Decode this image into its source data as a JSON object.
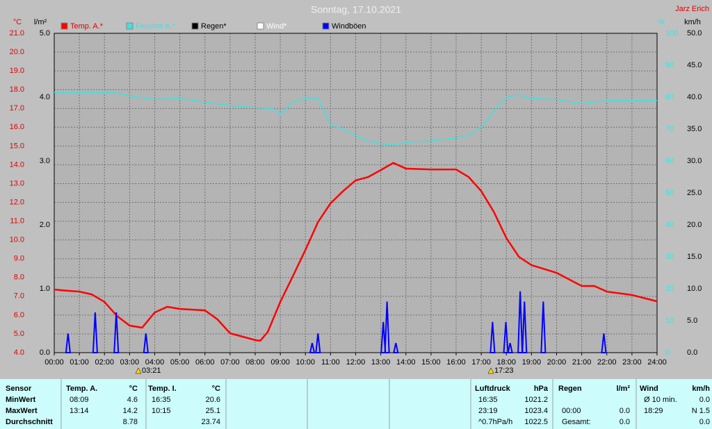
{
  "chart_data": {
    "type": "line",
    "title": "Sonntag, 17.10.2021",
    "author": "Jarz Erich",
    "y_unit": "°C",
    "y2_unit": "l/m²",
    "y3_unit": "%",
    "y4_unit": "km/h",
    "xlim": [
      0,
      24
    ],
    "xticks": [
      {
        "value": 0,
        "label": "00:00"
      },
      {
        "value": 1,
        "label": "01:00"
      },
      {
        "value": 2,
        "label": "02:00"
      },
      {
        "value": 3,
        "label": "03:00"
      },
      {
        "value": 4,
        "label": "04:00"
      },
      {
        "value": 5,
        "label": "05:00"
      },
      {
        "value": 6,
        "label": "06:00"
      },
      {
        "value": 7,
        "label": "07:00"
      },
      {
        "value": 8,
        "label": "08:00"
      },
      {
        "value": 9,
        "label": "09:00"
      },
      {
        "value": 10,
        "label": "10:00"
      },
      {
        "value": 11,
        "label": "11:00"
      },
      {
        "value": 12,
        "label": "12:00"
      },
      {
        "value": 13,
        "label": "13:00"
      },
      {
        "value": 14,
        "label": "14:00"
      },
      {
        "value": 15,
        "label": "15:00"
      },
      {
        "value": 16,
        "label": "16:00"
      },
      {
        "value": 17,
        "label": "17:00"
      },
      {
        "value": 18,
        "label": "18:00"
      },
      {
        "value": 19,
        "label": "19:00"
      },
      {
        "value": 20,
        "label": "20:00"
      },
      {
        "value": 21,
        "label": "21:00"
      },
      {
        "value": 22,
        "label": "22:00"
      },
      {
        "value": 23,
        "label": "23:00"
      },
      {
        "value": 24,
        "label": "24:00"
      }
    ],
    "ylim": [
      4,
      21
    ],
    "yticks": [
      {
        "value": 4,
        "label": "4.0"
      },
      {
        "value": 5,
        "label": "5.0"
      },
      {
        "value": 6,
        "label": "6.0"
      },
      {
        "value": 7,
        "label": "7.0"
      },
      {
        "value": 8,
        "label": "8.0"
      },
      {
        "value": 9,
        "label": "9.0"
      },
      {
        "value": 10,
        "label": "10.0"
      },
      {
        "value": 11,
        "label": "11.0"
      },
      {
        "value": 12,
        "label": "12.0"
      },
      {
        "value": 13,
        "label": "13.0"
      },
      {
        "value": 14,
        "label": "14.0"
      },
      {
        "value": 15,
        "label": "15.0"
      },
      {
        "value": 16,
        "label": "16.0"
      },
      {
        "value": 17,
        "label": "17.0"
      },
      {
        "value": 18,
        "label": "18.0"
      },
      {
        "value": 19,
        "label": "19.0"
      },
      {
        "value": 20,
        "label": "20.0"
      },
      {
        "value": 21,
        "label": "21.0"
      }
    ],
    "y2lim": [
      0,
      5
    ],
    "y2ticks": [
      {
        "value": 0,
        "label": "0.0"
      },
      {
        "value": 1,
        "label": "1.0"
      },
      {
        "value": 2,
        "label": "2.0"
      },
      {
        "value": 3,
        "label": "3.0"
      },
      {
        "value": 4,
        "label": "4.0"
      },
      {
        "value": 5,
        "label": "5.0"
      }
    ],
    "y3lim": [
      0,
      100
    ],
    "y3ticks": [
      0,
      10,
      20,
      30,
      40,
      50,
      60,
      70,
      80,
      90,
      100
    ],
    "y4lim": [
      0,
      50
    ],
    "y4ticks": [
      {
        "value": 0,
        "label": "0.0"
      },
      {
        "value": 5,
        "label": "5.0"
      },
      {
        "value": 10,
        "label": "10.0"
      },
      {
        "value": 15,
        "label": "15.0"
      },
      {
        "value": 20,
        "label": "20.0"
      },
      {
        "value": 25,
        "label": "25.0"
      },
      {
        "value": 30,
        "label": "30.0"
      },
      {
        "value": 35,
        "label": "35.0"
      },
      {
        "value": 40,
        "label": "40.0"
      },
      {
        "value": 45,
        "label": "45.0"
      },
      {
        "value": 50,
        "label": "50.0"
      }
    ],
    "grid": true,
    "series": [
      {
        "name": "Temp. A.*",
        "color": "#ff0000",
        "axis": "y",
        "kind": "line",
        "x": [
          0,
          0.5,
          1,
          1.5,
          2,
          2.5,
          3,
          3.5,
          4,
          4.5,
          5,
          6,
          6.5,
          7,
          7.5,
          8,
          8.2,
          8.5,
          9,
          9.5,
          10,
          10.5,
          11,
          11.5,
          12,
          12.5,
          13,
          13.5,
          14,
          15,
          16,
          16.5,
          17,
          17.5,
          18,
          18.5,
          19,
          20,
          21,
          21.5,
          22,
          23,
          24
        ],
        "values": [
          7.36,
          7.3,
          7.25,
          7.1,
          6.7,
          5.95,
          5.44,
          5.33,
          6.14,
          6.44,
          6.33,
          6.25,
          5.77,
          5.03,
          4.85,
          4.67,
          4.63,
          5.1,
          6.7,
          8.07,
          9.47,
          10.95,
          11.95,
          12.6,
          13.17,
          13.35,
          13.72,
          14.1,
          13.8,
          13.75,
          13.75,
          13.35,
          12.6,
          11.5,
          10.1,
          9.1,
          8.66,
          8.25,
          7.55,
          7.55,
          7.25,
          7.07,
          6.73
        ]
      },
      {
        "name": "Feuchte A.*",
        "color": "#40e0e0",
        "axis": "y3",
        "kind": "line",
        "x": [
          0,
          1,
          2,
          2.5,
          3,
          4,
          5,
          6,
          7,
          8,
          8.7,
          9,
          9.5,
          10,
          10.5,
          11,
          11.5,
          12,
          12.5,
          13,
          13.5,
          14,
          15,
          16,
          16.5,
          17,
          17.5,
          18,
          18.5,
          19,
          20,
          21,
          21.5,
          22,
          24
        ],
        "values": [
          81.5,
          81.5,
          81.5,
          81.3,
          80.4,
          79.3,
          79.6,
          78.5,
          77.4,
          76.7,
          76.5,
          74.6,
          78.5,
          79.6,
          79.8,
          71.3,
          70,
          68,
          66.3,
          65.4,
          65,
          65.9,
          66.3,
          67.2,
          68,
          70.7,
          75.7,
          80,
          80.7,
          79.6,
          79.3,
          78,
          78.5,
          78.9,
          78.9
        ]
      },
      {
        "name": "Regen*",
        "color": "#000000",
        "axis": "y2",
        "kind": "spike",
        "x": [],
        "values": []
      },
      {
        "name": "Wind*",
        "color": "#ffffff",
        "axis": "y4",
        "kind": "line",
        "x": [],
        "values": []
      },
      {
        "name": "Windböen",
        "color": "#0000ff",
        "axis": "y4",
        "kind": "spike",
        "x": [
          0.55,
          1.63,
          2.47,
          3.65,
          10.27,
          10.5,
          13.1,
          13.25,
          13.6,
          17.45,
          17.98,
          18.15,
          18.55,
          18.72,
          19.47,
          21.88
        ],
        "values": [
          3.0,
          6.3,
          6.3,
          3.0,
          1.5,
          3.0,
          4.8,
          8.0,
          1.5,
          4.8,
          4.8,
          1.5,
          9.6,
          8.0,
          8.0,
          3.0
        ]
      }
    ],
    "annotations": [
      {
        "x": 3.35,
        "label": "03:21"
      },
      {
        "x": 17.383,
        "label": "17:23"
      }
    ]
  },
  "table": {
    "header": [
      "Sensor",
      "Temp. A.",
      "°C",
      "Temp. I.",
      "°C",
      "Luftdruck",
      "hPa",
      "Regen",
      "l/m²",
      "Wind",
      "km/h"
    ],
    "rows": [
      [
        "MinWert",
        "08:09",
        "4.6",
        "16:35",
        "20.6",
        "16:35",
        "1021.2",
        null,
        null,
        "Ø 10 min.",
        "0.0"
      ],
      [
        "MaxWert",
        "13:14",
        "14.2",
        "10:15",
        "25.1",
        "23:19",
        "1023.4",
        "00:00",
        "0.0",
        "18:29",
        "N 1.5"
      ],
      [
        "Durchschnitt",
        null,
        "8.78",
        null,
        "23.74",
        "^0.7hPa/h",
        "1022.5",
        "Gesamt:",
        "0.0",
        null,
        "0.0"
      ]
    ]
  }
}
